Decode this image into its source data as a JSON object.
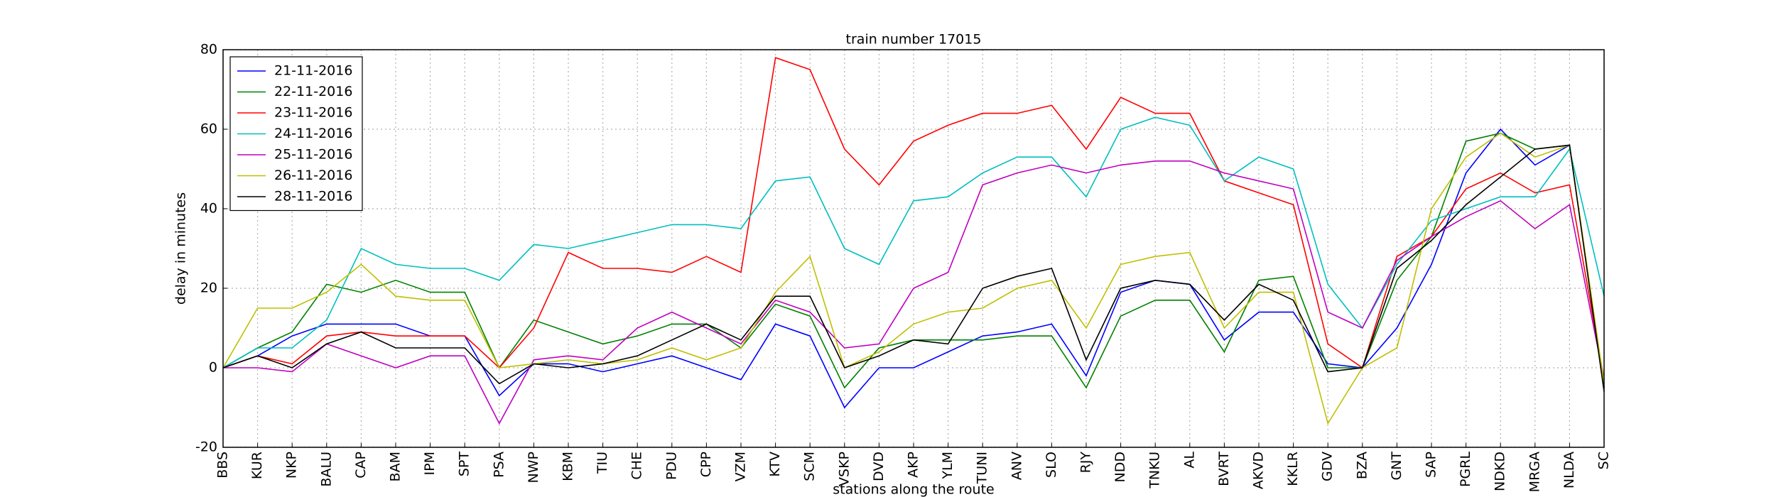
{
  "chart_data": {
    "type": "line",
    "title": "train number 17015",
    "x_label": "stations along the route",
    "y_label": "delay in minutes",
    "categories": [
      "BBS",
      "KUR",
      "NKP",
      "BALU",
      "CAP",
      "BAM",
      "IPM",
      "SPT",
      "PSA",
      "NWP",
      "KBM",
      "TIU",
      "CHE",
      "PDU",
      "CPP",
      "VZM",
      "KTV",
      "SCM",
      "VSKP",
      "DVD",
      "AKP",
      "YLM",
      "TUNI",
      "ANV",
      "SLO",
      "RJY",
      "NDD",
      "TNKU",
      "AL",
      "BVRT",
      "AKVD",
      "KKLR",
      "GDV",
      "BZA",
      "GNT",
      "SAP",
      "PGRL",
      "NDKD",
      "MRGA",
      "NLDA",
      "SC"
    ],
    "series": [
      {
        "name": "21-11-2016",
        "color": "#0000ff",
        "values": [
          0,
          3,
          8,
          11,
          11,
          11,
          8,
          8,
          -7,
          1,
          1,
          -1,
          1,
          3,
          0,
          -3,
          11,
          8,
          -10,
          0,
          0,
          4,
          8,
          9,
          11,
          -2,
          19,
          22,
          21,
          7,
          14,
          14,
          1,
          0,
          10,
          26,
          49,
          60,
          51,
          56,
          -5
        ]
      },
      {
        "name": "22-11-2016",
        "color": "#008000",
        "values": [
          0,
          5,
          9,
          21,
          19,
          22,
          19,
          19,
          0,
          12,
          9,
          6,
          8,
          11,
          11,
          5,
          16,
          13,
          -5,
          5,
          7,
          7,
          7,
          8,
          8,
          -5,
          13,
          17,
          17,
          4,
          22,
          23,
          0,
          0,
          22,
          33,
          57,
          59,
          55,
          56,
          -5
        ]
      },
      {
        "name": "23-11-2016",
        "color": "#ff0000",
        "values": [
          0,
          3,
          1,
          8,
          9,
          8,
          8,
          8,
          0,
          10,
          29,
          25,
          25,
          24,
          28,
          24,
          78,
          75,
          55,
          46,
          57,
          61,
          64,
          64,
          66,
          55,
          68,
          64,
          64,
          47,
          44,
          41,
          6,
          0,
          28,
          33,
          45,
          49,
          44,
          46,
          -3
        ]
      },
      {
        "name": "24-11-2016",
        "color": "#00bfbf",
        "values": [
          0,
          5,
          5,
          12,
          30,
          26,
          25,
          25,
          22,
          31,
          30,
          32,
          34,
          36,
          36,
          35,
          47,
          48,
          30,
          26,
          42,
          43,
          49,
          53,
          53,
          43,
          60,
          63,
          61,
          47,
          53,
          50,
          21,
          10,
          26,
          37,
          40,
          43,
          43,
          55,
          18
        ]
      },
      {
        "name": "25-11-2016",
        "color": "#bf00bf",
        "values": [
          0,
          0,
          -1,
          6,
          3,
          0,
          3,
          3,
          -14,
          2,
          3,
          2,
          10,
          14,
          10,
          6,
          17,
          14,
          5,
          6,
          20,
          24,
          46,
          49,
          51,
          49,
          51,
          52,
          52,
          49,
          47,
          45,
          14,
          10,
          27,
          33,
          38,
          42,
          35,
          41,
          -3
        ]
      },
      {
        "name": "26-11-2016",
        "color": "#bfbf00",
        "values": [
          0,
          15,
          15,
          19,
          26,
          18,
          17,
          17,
          0,
          1,
          2,
          1,
          2,
          5,
          2,
          5,
          19,
          28,
          0,
          4,
          11,
          14,
          15,
          20,
          22,
          10,
          26,
          28,
          29,
          10,
          19,
          19,
          -14,
          0,
          5,
          40,
          53,
          59,
          53,
          56,
          -4
        ]
      },
      {
        "name": "28-11-2016",
        "color": "#000000",
        "values": [
          0,
          3,
          0,
          6,
          9,
          5,
          5,
          5,
          -4,
          1,
          0,
          1,
          3,
          7,
          11,
          7,
          18,
          18,
          0,
          3,
          7,
          6,
          20,
          23,
          25,
          2,
          20,
          22,
          21,
          12,
          21,
          17,
          -1,
          0,
          25,
          32,
          41,
          48,
          55,
          56,
          -6
        ]
      }
    ],
    "ylim": [
      -20,
      80
    ],
    "yticks": [
      -20,
      0,
      20,
      40,
      60,
      80
    ],
    "grid": true,
    "legend": "upper left"
  }
}
